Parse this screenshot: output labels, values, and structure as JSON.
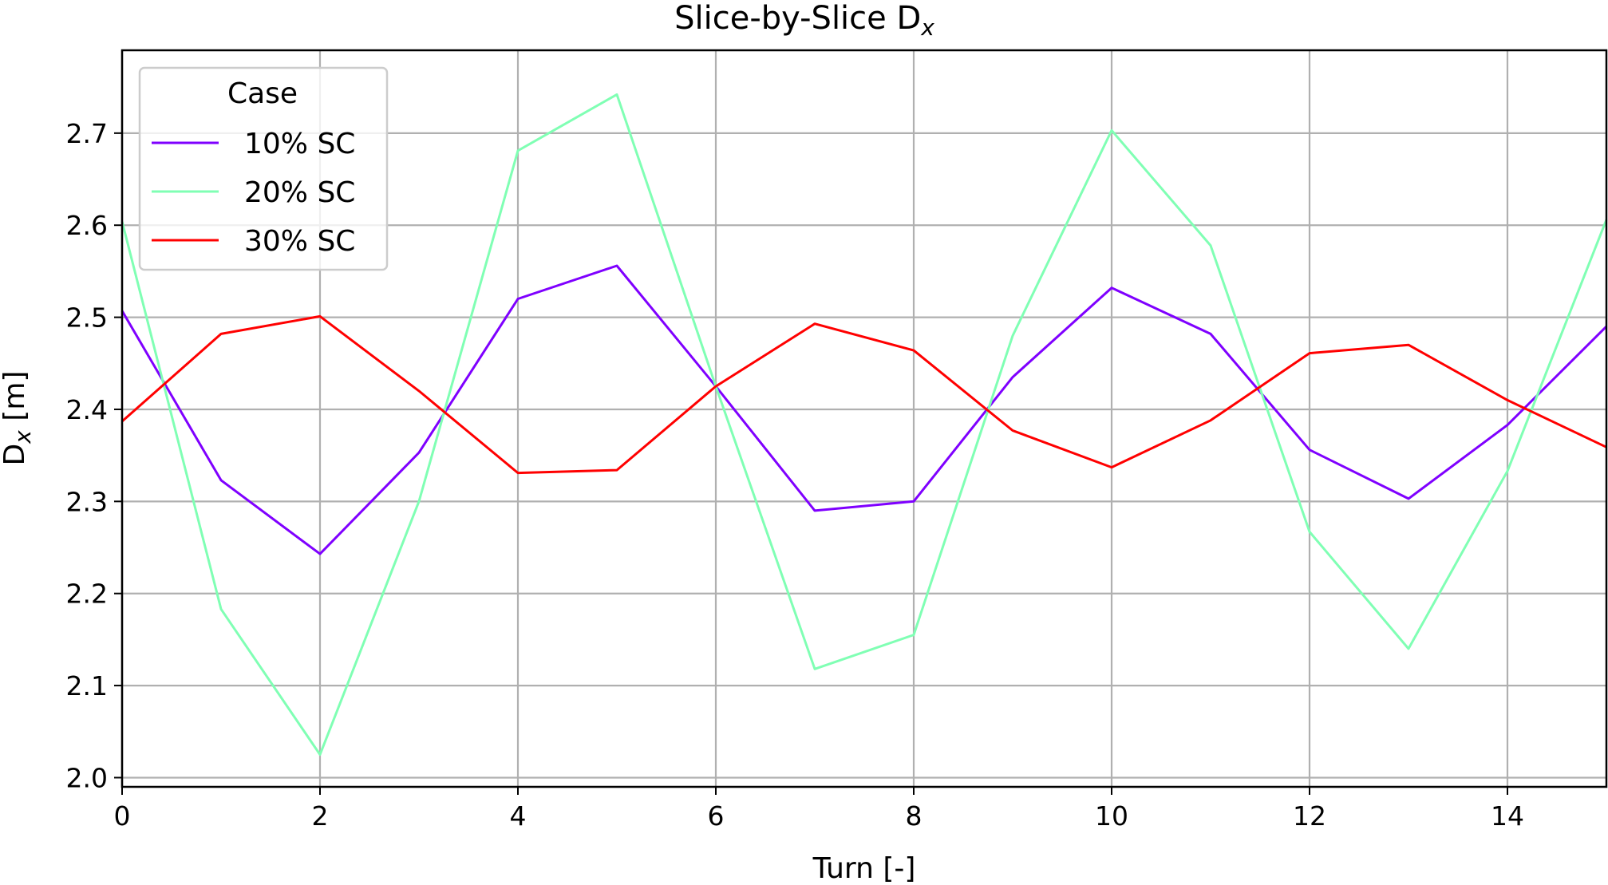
{
  "chart_data": {
    "type": "line",
    "title_main": "Slice-by-Slice D",
    "title_sub": "x",
    "xlabel": "Turn [-]",
    "ylabel_main": "D",
    "ylabel_sub": "x",
    "ylabel_unit": " [m]",
    "xlim": [
      0,
      15
    ],
    "ylim": [
      1.99,
      2.79
    ],
    "xticks": [
      0,
      2,
      4,
      6,
      8,
      10,
      12,
      14
    ],
    "yticks": [
      2.0,
      2.1,
      2.2,
      2.3,
      2.4,
      2.5,
      2.6,
      2.7
    ],
    "xtick_labels": [
      "0",
      "2",
      "4",
      "6",
      "8",
      "10",
      "12",
      "14"
    ],
    "ytick_labels": [
      "2.0",
      "2.1",
      "2.2",
      "2.3",
      "2.4",
      "2.5",
      "2.6",
      "2.7"
    ],
    "grid": true,
    "legend_title": "Case",
    "legend_position": "top-left",
    "x": [
      0,
      1,
      2,
      3,
      4,
      5,
      6,
      7,
      8,
      9,
      10,
      11,
      12,
      13,
      14,
      15
    ],
    "series": [
      {
        "name": "10% SC",
        "color": "#7f00ff",
        "values": [
          2.507,
          2.323,
          2.243,
          2.353,
          2.52,
          2.556,
          2.425,
          2.29,
          2.3,
          2.435,
          2.532,
          2.482,
          2.356,
          2.303,
          2.383,
          2.49
        ]
      },
      {
        "name": "20% SC",
        "color": "#80ffb4",
        "values": [
          2.604,
          2.183,
          2.025,
          2.3,
          2.681,
          2.742,
          2.425,
          2.118,
          2.155,
          2.48,
          2.703,
          2.578,
          2.267,
          2.14,
          2.333,
          2.606
        ]
      },
      {
        "name": "30% SC",
        "color": "#ff0000",
        "values": [
          2.387,
          2.482,
          2.501,
          2.42,
          2.331,
          2.334,
          2.425,
          2.493,
          2.464,
          2.377,
          2.337,
          2.388,
          2.461,
          2.47,
          2.41,
          2.359
        ]
      }
    ]
  }
}
